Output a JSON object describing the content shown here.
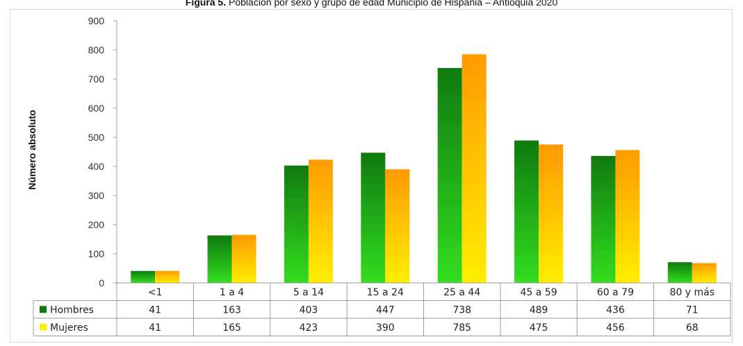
{
  "caption": {
    "bold": "Figura 5.",
    "text": " Población por sexo y grupo de edad Municipio de Hispania – Antioquia  2020"
  },
  "colors": {
    "hombres": "#0f7a0f",
    "hombres_light": "#33dd1f",
    "mujeres": "#ff9a00",
    "mujeres_light": "#ffee00"
  },
  "chart_data": {
    "type": "bar",
    "title": "Figura 5. Población por sexo y grupo de edad Municipio de Hispania – Antioquia  2020",
    "ylabel": "Número absoluto",
    "xlabel": "",
    "ylim": [
      0,
      900
    ],
    "yticks": [
      0,
      100,
      200,
      300,
      400,
      500,
      600,
      700,
      800,
      900
    ],
    "grid": false,
    "legend": "data-table",
    "categories": [
      "<1",
      "1 a 4",
      "5 a 14",
      "15 a 24",
      "25 a 44",
      "45 a 59",
      "60 a 79",
      "80 y más"
    ],
    "series": [
      {
        "name": "Hombres",
        "values": [
          41,
          163,
          403,
          447,
          738,
          489,
          436,
          71
        ]
      },
      {
        "name": "Mujeres",
        "values": [
          41,
          165,
          423,
          390,
          785,
          475,
          456,
          68
        ]
      }
    ]
  }
}
